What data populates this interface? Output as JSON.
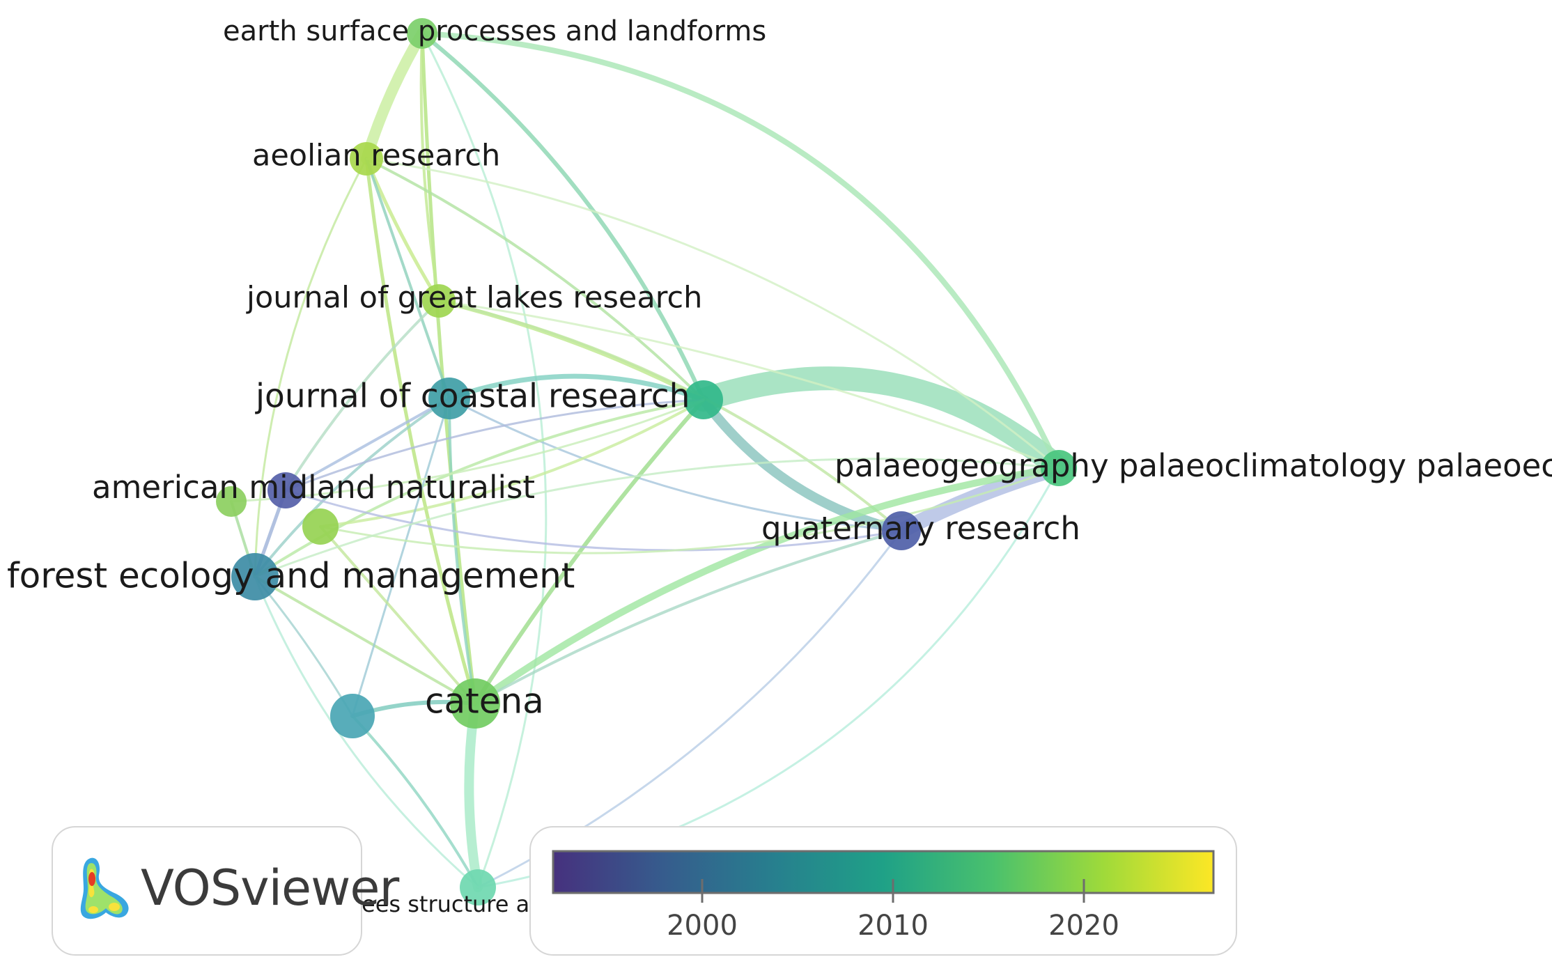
{
  "nodes": [
    {
      "id": "earth-surface",
      "label": "earth surface processes and landforms",
      "color": "#7ccf6a"
    },
    {
      "id": "aeolian",
      "label": "aeolian research",
      "color": "#a8d84c"
    },
    {
      "id": "great-lakes",
      "label": "journal of great lakes research",
      "color": "#9ed650"
    },
    {
      "id": "coastal",
      "label": "journal of coastal research",
      "color": "#3f9ea6"
    },
    {
      "id": "hub",
      "label": "",
      "color": "#32b98a"
    },
    {
      "id": "palaeo",
      "label": "palaeogeography palaeoclimatology palaeoecology",
      "color": "#4ac67e"
    },
    {
      "id": "quaternary",
      "label": "quaternary research",
      "color": "#4f5fa8"
    },
    {
      "id": "midland",
      "label": "american midland naturalist",
      "color": "#5560a8"
    },
    {
      "id": "green-small-left",
      "label": "",
      "color": "#8ccf5f"
    },
    {
      "id": "green-small-mid",
      "label": "",
      "color": "#96d252"
    },
    {
      "id": "forest",
      "label": "forest ecology and management",
      "color": "#3d8ca5"
    },
    {
      "id": "teal-lower",
      "label": "",
      "color": "#4aa6b4"
    },
    {
      "id": "catena",
      "label": "catena",
      "color": "#72cc62"
    },
    {
      "id": "trees",
      "label": "trees structure and function",
      "color": "#6fd8b0"
    }
  ],
  "logo": {
    "brand": "VOSviewer"
  },
  "legend": {
    "ticks": [
      "2000",
      "2010",
      "2020"
    ],
    "gradient": [
      "#46317e",
      "#365c8d",
      "#277f8e",
      "#1fa187",
      "#4ac16d",
      "#9fda3a",
      "#fde725"
    ]
  }
}
